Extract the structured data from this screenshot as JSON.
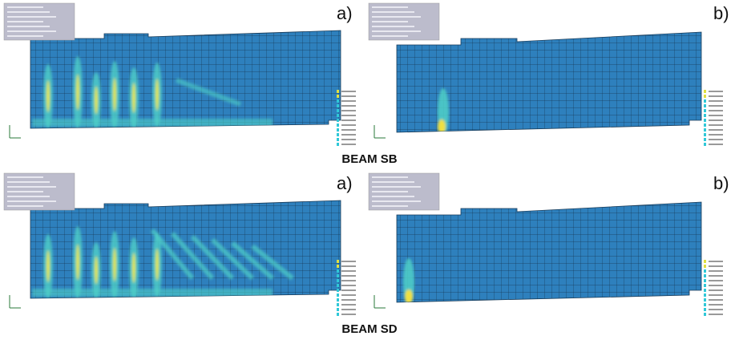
{
  "beams": [
    {
      "caption": "BEAM SB",
      "panels": [
        {
          "label": "a)"
        },
        {
          "label": "b)"
        }
      ]
    },
    {
      "caption": "BEAM SD",
      "panels": [
        {
          "label": "a)"
        },
        {
          "label": "b)"
        }
      ]
    }
  ]
}
